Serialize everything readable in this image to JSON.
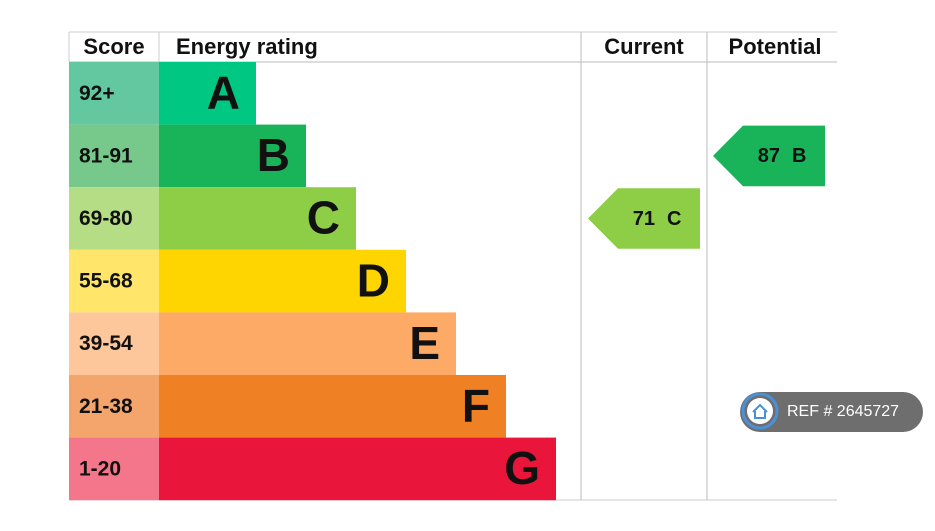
{
  "header": {
    "score": "Score",
    "rating": "Energy rating",
    "current": "Current",
    "potential": "Potential"
  },
  "bands": [
    {
      "score": "92+",
      "letter": "A",
      "score_color": "#63c7a0",
      "bar_color": "#00c781"
    },
    {
      "score": "81-91",
      "letter": "B",
      "score_color": "#76c98b",
      "bar_color": "#19b459"
    },
    {
      "score": "69-80",
      "letter": "C",
      "score_color": "#b5dd85",
      "bar_color": "#8dce46"
    },
    {
      "score": "55-68",
      "letter": "D",
      "score_color": "#ffe66b",
      "bar_color": "#ffd500"
    },
    {
      "score": "39-54",
      "letter": "E",
      "score_color": "#fdc79b",
      "bar_color": "#fcaa65"
    },
    {
      "score": "21-38",
      "letter": "F",
      "score_color": "#f4a56c",
      "bar_color": "#ef8023"
    },
    {
      "score": "1-20",
      "letter": "G",
      "score_color": "#f4768a",
      "bar_color": "#e9153b"
    }
  ],
  "current": {
    "score": 71,
    "band": "C"
  },
  "potential": {
    "score": 87,
    "band": "B"
  },
  "badge": {
    "ref": "REF # 2645727"
  }
}
